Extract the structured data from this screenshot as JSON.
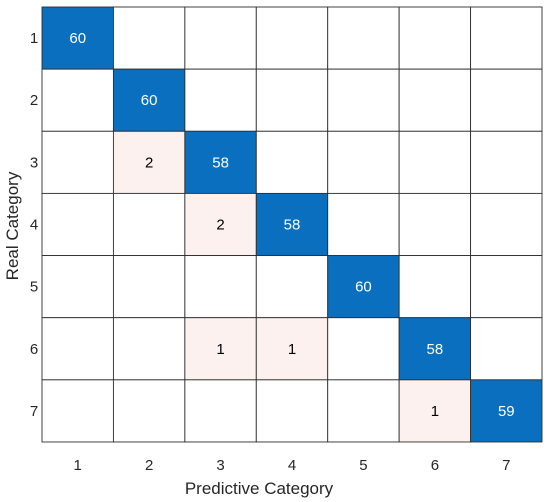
{
  "chart_data": {
    "type": "heatmap",
    "title": "",
    "xlabel": "Predictive Category",
    "ylabel": "Real Category",
    "x_categories": [
      "1",
      "2",
      "3",
      "4",
      "5",
      "6",
      "7"
    ],
    "y_categories": [
      "1",
      "2",
      "3",
      "4",
      "5",
      "6",
      "7"
    ],
    "cells": [
      {
        "row": 0,
        "col": 0,
        "value": 60
      },
      {
        "row": 1,
        "col": 1,
        "value": 60
      },
      {
        "row": 2,
        "col": 1,
        "value": 2
      },
      {
        "row": 2,
        "col": 2,
        "value": 58
      },
      {
        "row": 3,
        "col": 2,
        "value": 2
      },
      {
        "row": 3,
        "col": 3,
        "value": 58
      },
      {
        "row": 4,
        "col": 4,
        "value": 60
      },
      {
        "row": 5,
        "col": 2,
        "value": 1
      },
      {
        "row": 5,
        "col": 3,
        "value": 1
      },
      {
        "row": 5,
        "col": 5,
        "value": 58
      },
      {
        "row": 6,
        "col": 5,
        "value": 1
      },
      {
        "row": 6,
        "col": 6,
        "value": 59
      }
    ],
    "colors": {
      "diagonal": "#0a6fbf",
      "off_diagonal": "#fcf1ee",
      "empty": "#ffffff",
      "grid": "#2f2f2f",
      "diagonal_text": "#ffffff",
      "off_diagonal_text": "#000000"
    },
    "grid": true
  }
}
